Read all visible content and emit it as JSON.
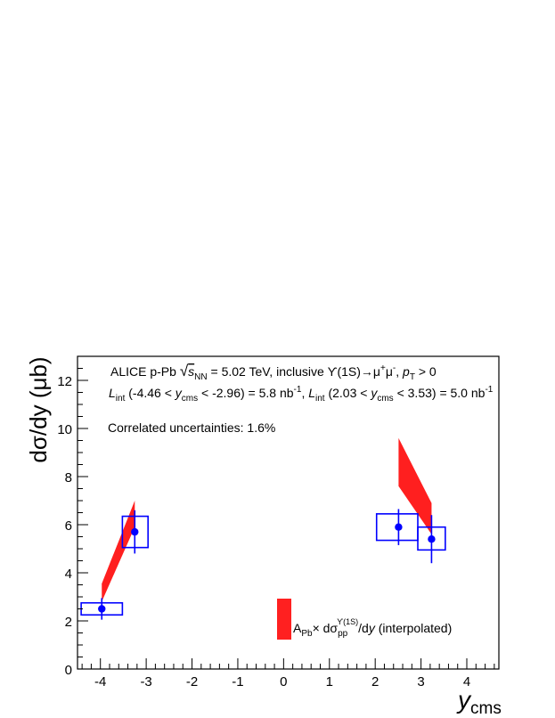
{
  "chart_data": {
    "type": "scatter",
    "xlim": [
      -4.5,
      4.7
    ],
    "ylim": [
      0,
      13
    ],
    "x_ticks": [
      -4,
      -3,
      -2,
      -1,
      0,
      1,
      2,
      3,
      4
    ],
    "y_ticks": [
      0,
      2,
      4,
      6,
      8,
      10,
      12
    ],
    "x_tick_labels": [
      "-4",
      "-3",
      "-2",
      "-1",
      "0",
      "1",
      "2",
      "3",
      "4"
    ],
    "y_tick_labels": [
      "0",
      "2",
      "4",
      "6",
      "8",
      "10",
      "12"
    ],
    "ylabel": "dσ/dy (μb)",
    "xlabel_main": "y",
    "xlabel_sub": "cms",
    "annotations": {
      "line1": "ALICE p-Pb √s_NN = 5.02 TeV, inclusive ϒ(1S)→μ⁺μ⁻, p_T > 0",
      "line2": "L_int (-4.46 < y_cms < -2.96) = 5.8 nb⁻¹, L_int (2.03 < y_cms < 3.53) = 5.0 nb⁻¹",
      "correlated": "Correlated uncertainties: 1.6%"
    },
    "legend": {
      "label": "A_Pb× dσ_pp^ϒ(1S)/dy (interpolated)",
      "position": "bottom-center",
      "color": "#ff0000"
    },
    "series": [
      {
        "marker_color": "#0000ff",
        "points": [
          {
            "x": -3.97,
            "y": 2.5,
            "stat_lo": 2.05,
            "stat_hi": 2.95,
            "sys_x": [
              -4.42,
              -3.52
            ],
            "sys_y": [
              2.25,
              2.75
            ]
          },
          {
            "x": -3.25,
            "y": 5.7,
            "stat_lo": 4.8,
            "stat_hi": 6.6,
            "sys_x": [
              -3.52,
              -2.96
            ],
            "sys_y": [
              5.05,
              6.35
            ]
          },
          {
            "x": 2.51,
            "y": 5.9,
            "stat_lo": 5.15,
            "stat_hi": 6.65,
            "sys_x": [
              2.03,
              2.93
            ],
            "sys_y": [
              5.35,
              6.45
            ]
          },
          {
            "x": 3.23,
            "y": 5.4,
            "stat_lo": 4.4,
            "stat_hi": 6.4,
            "sys_x": [
              2.93,
              3.53
            ],
            "sys_y": [
              4.95,
              5.9
            ]
          }
        ]
      }
    ],
    "bands": [
      {
        "x": [
          -3.97,
          -3.25
        ],
        "y_lo": [
          2.8,
          5.9
        ],
        "y_hi": [
          3.55,
          7.0
        ]
      },
      {
        "x": [
          2.51,
          3.23
        ],
        "y_lo": [
          7.6,
          5.6
        ],
        "y_hi": [
          9.6,
          6.9
        ]
      }
    ]
  }
}
